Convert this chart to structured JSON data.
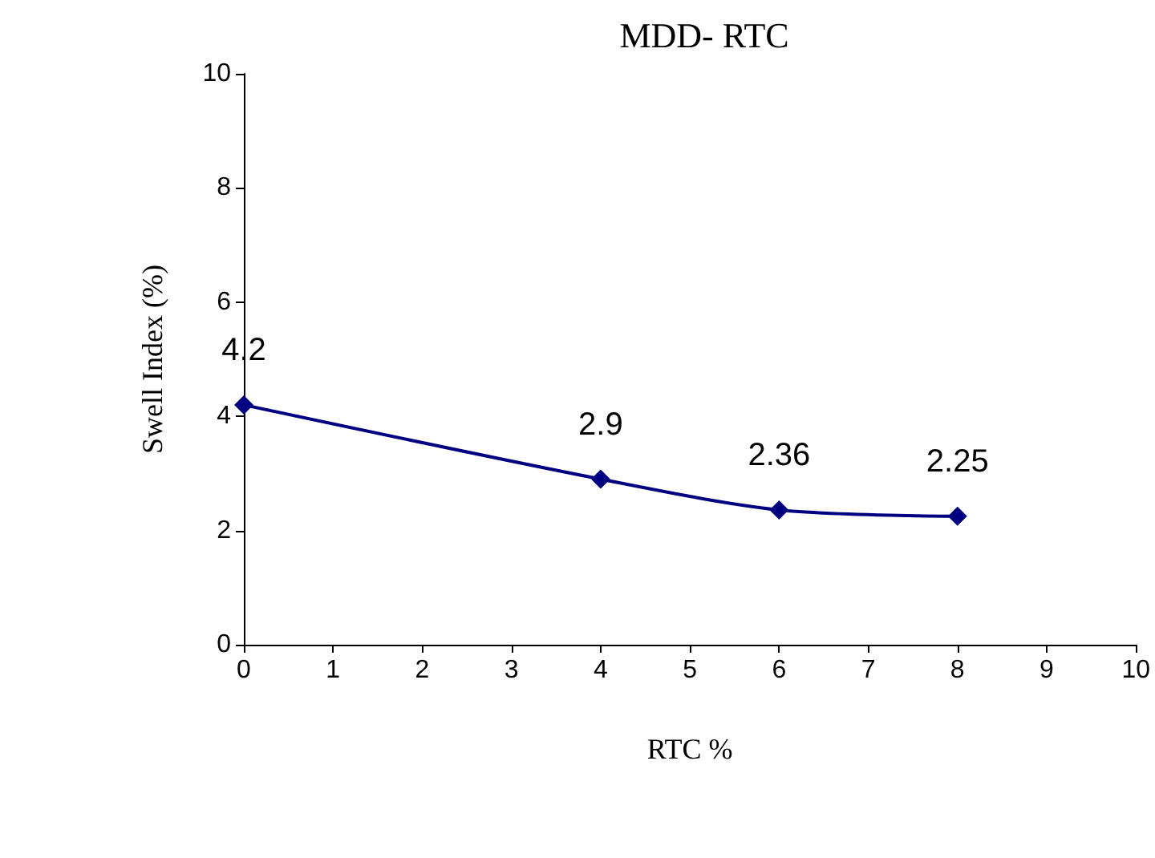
{
  "chart_data": {
    "type": "line",
    "title": "MDD- RTC",
    "xlabel": "RTC %",
    "ylabel": "Swell Index (%)",
    "x": [
      0,
      4,
      6,
      8
    ],
    "series": [
      {
        "color": "#000080",
        "values": [
          4.2,
          2.9,
          2.36,
          2.25
        ]
      }
    ],
    "xlim": [
      0,
      10
    ],
    "xticks": [
      0,
      1,
      2,
      3,
      4,
      5,
      6,
      7,
      8,
      9,
      10
    ],
    "ylim": [
      0,
      10
    ],
    "yticks": [
      0,
      2,
      4,
      6,
      8,
      10
    ],
    "marker": "diamond",
    "line_style": "solid",
    "data_labels": true
  }
}
